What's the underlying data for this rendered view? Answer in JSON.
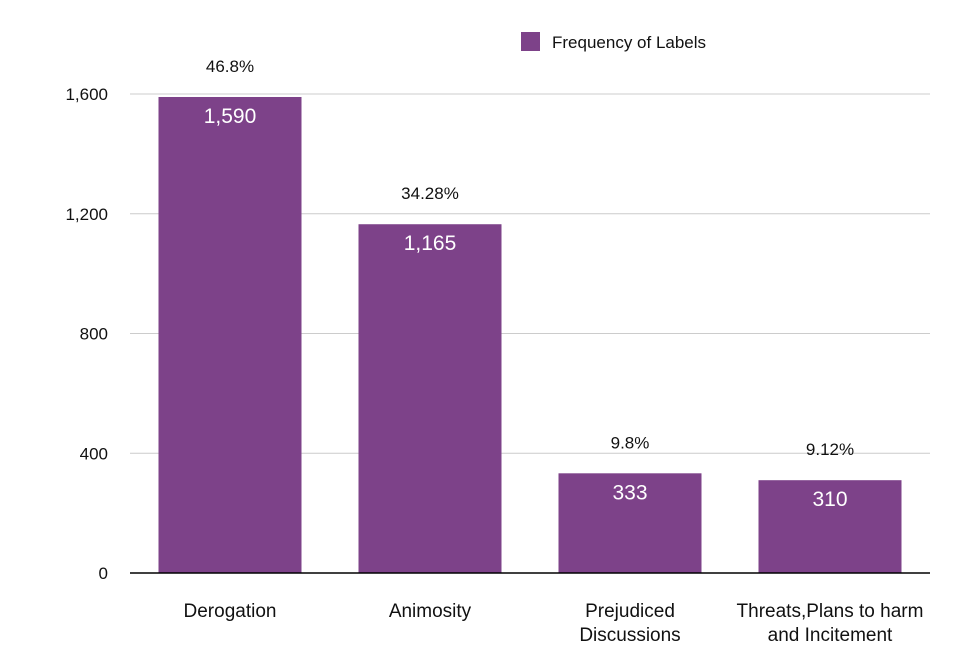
{
  "chart_data": {
    "type": "bar",
    "categories": [
      "Derogation",
      "Animosity",
      "Prejudiced Discussions",
      "Threats,Plans to harm and Incitement"
    ],
    "category_lines": [
      [
        "Derogation"
      ],
      [
        "Animosity"
      ],
      [
        "Prejudiced",
        "Discussions"
      ],
      [
        "Threats,Plans to harm",
        "and Incitement"
      ]
    ],
    "series": [
      {
        "name": "Frequency of Labels",
        "values": [
          1590,
          1165,
          333,
          310
        ],
        "value_labels": [
          "1,590",
          "1,165",
          "333",
          "310"
        ],
        "percent_labels": [
          "46.8%",
          "34.28%",
          "9.8%",
          "9.12%"
        ],
        "color": "#7d4289"
      }
    ],
    "ylim": [
      0,
      1600
    ],
    "yticks": [
      0,
      400,
      800,
      1200,
      1600
    ],
    "ytick_labels": [
      "0",
      "400",
      "800",
      "1,200",
      "1,600"
    ],
    "grid": true,
    "legend_position": "top-right",
    "gridline_color": "#cccccc",
    "axis_color": "#000000"
  }
}
